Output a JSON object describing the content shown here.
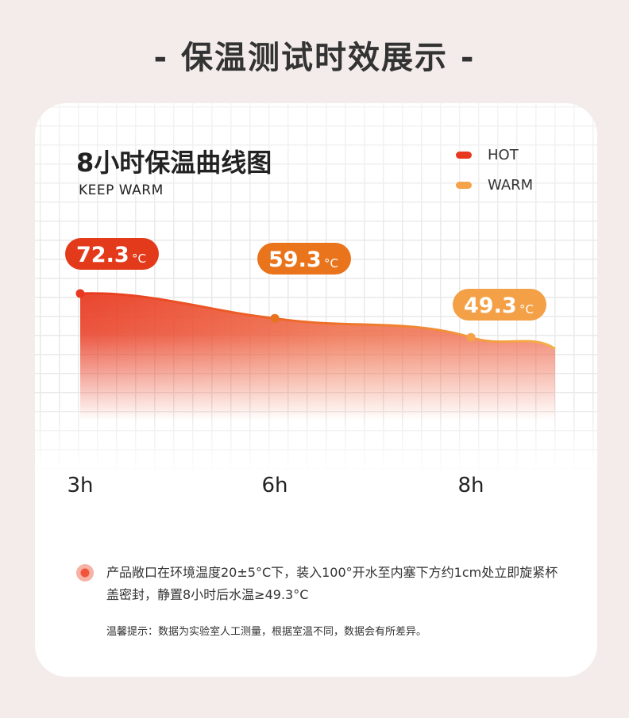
{
  "page": {
    "title": "- 保温测试时效展示 -"
  },
  "card": {
    "title": "8小时保温曲线图",
    "subtitle": "KEEP WARM",
    "note": "产品敞口在环境温度20±5°C下，装入100°开水至内塞下方约1cm处立即旋紧杯盖密封，静置8小时后水温≥49.3°C",
    "tip": "温馨提示：数据为实验室人工测量，根据室温不同，数据会有所差异。"
  },
  "legend": [
    {
      "label": "HOT",
      "color": "#e8381f"
    },
    {
      "label": "WARM",
      "color": "#f5a24a"
    }
  ],
  "colors": {
    "hot": "#e8381f",
    "mid": "#e7731f",
    "warm": "#f5a24a",
    "badge_hot": "#e43a1c",
    "badge_mid": "#e9741c",
    "badge_warm": "#f3a047"
  },
  "chart_data": {
    "type": "area",
    "title": "8小时保温曲线图",
    "subtitle": "KEEP WARM",
    "x": [
      "3h",
      "6h",
      "8h"
    ],
    "series": [
      {
        "values": [
          72.3,
          59.3,
          49.3
        ],
        "labels": [
          {
            "value": "72.3",
            "unit": "°C"
          },
          {
            "value": "59.3",
            "unit": "°C"
          },
          {
            "value": "49.3",
            "unit": "°C"
          }
        ]
      }
    ],
    "unit": "°C",
    "grid": true,
    "legend": "top-right"
  }
}
